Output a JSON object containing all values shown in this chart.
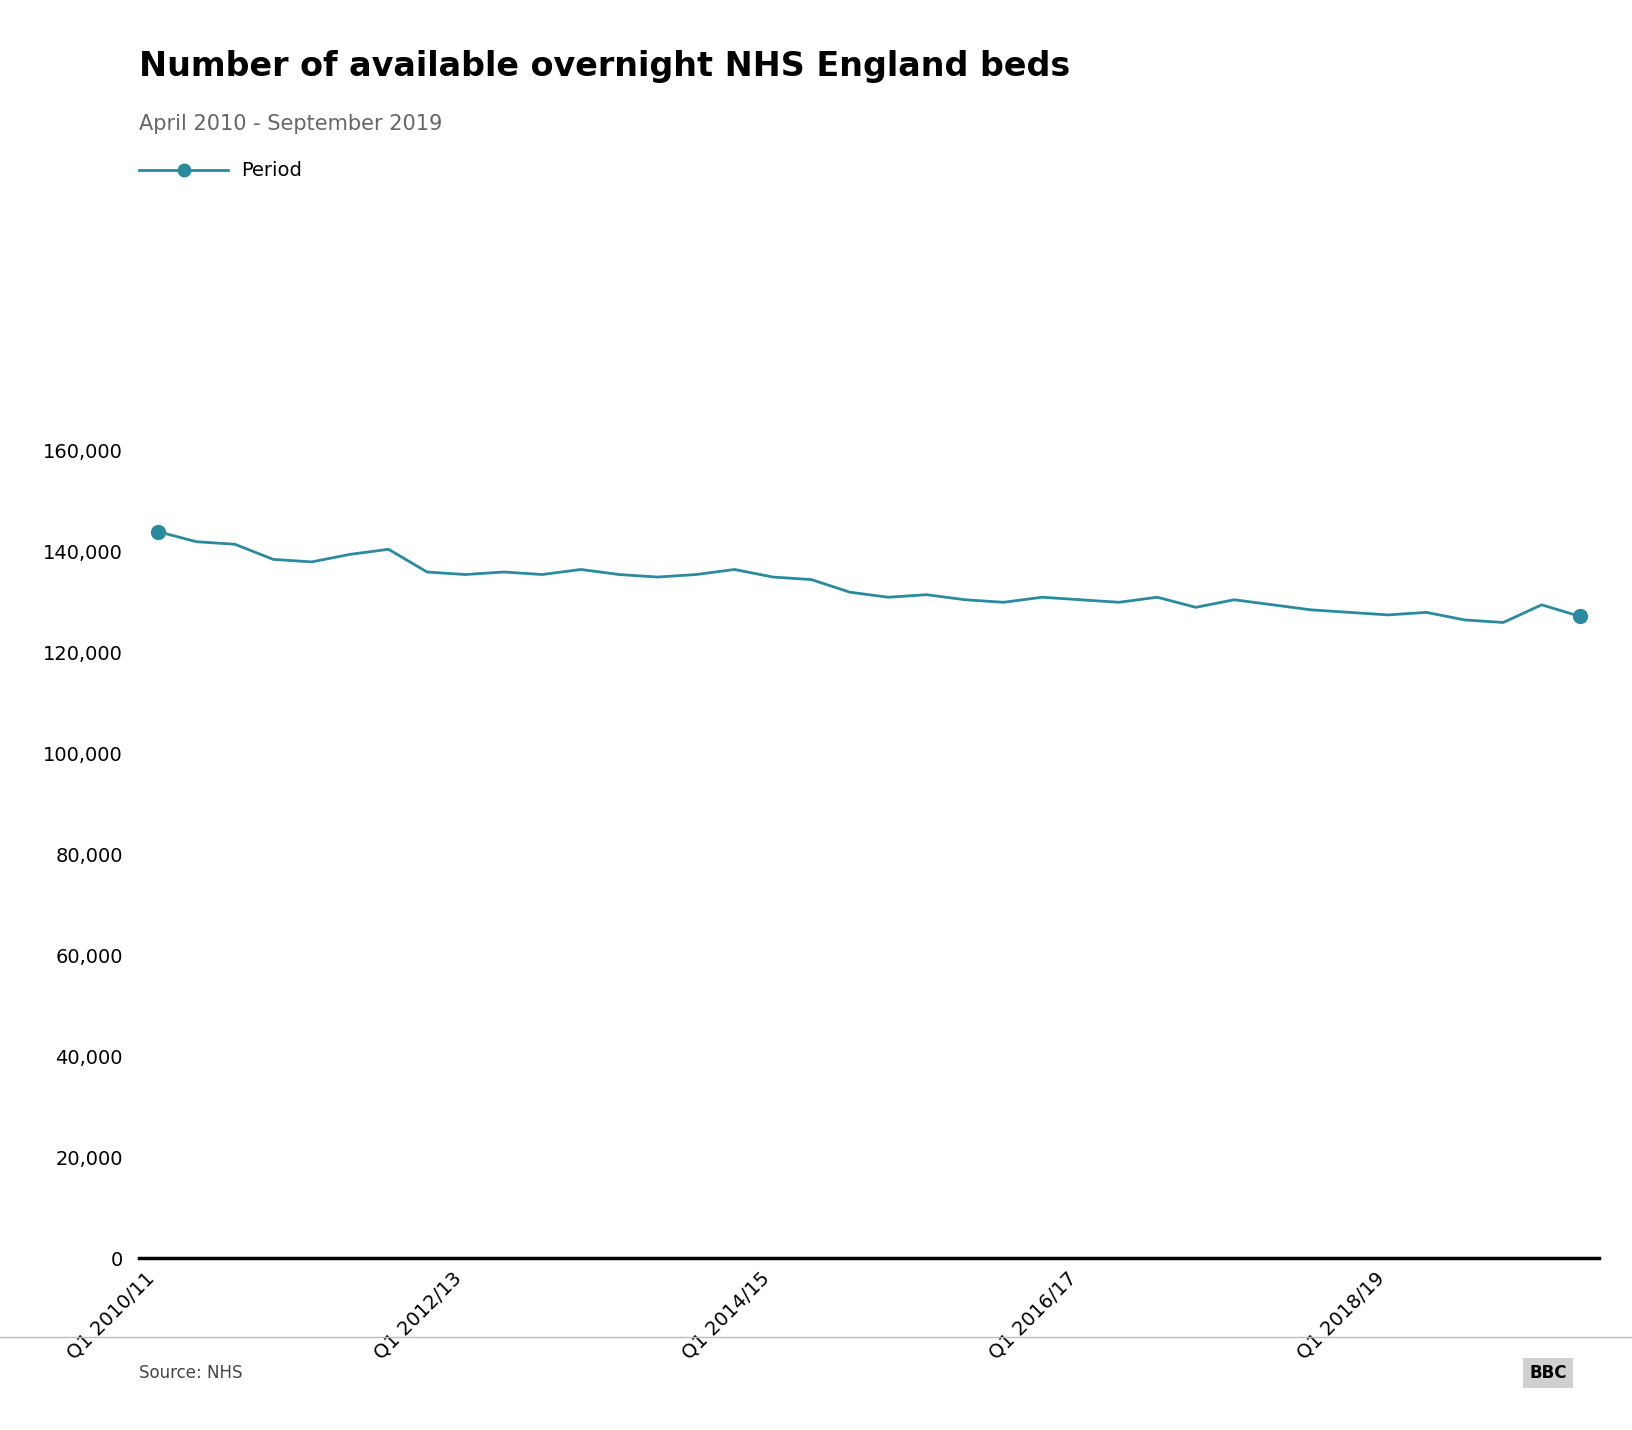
{
  "title": "Number of available overnight NHS England beds",
  "subtitle": "April 2010 - September 2019",
  "source": "Source: NHS",
  "legend_label": "Period",
  "line_color": "#2a8a9e",
  "marker_color": "#2a8a9e",
  "background_color": "#ffffff",
  "ylim": [
    0,
    170000
  ],
  "yticks": [
    0,
    20000,
    40000,
    60000,
    80000,
    100000,
    120000,
    140000,
    160000
  ],
  "xtick_labels": [
    "Q1 2010/11",
    "Q1 2012/13",
    "Q1 2014/15",
    "Q1 2016/17",
    "Q1 2018/19"
  ],
  "xtick_positions": [
    0,
    8,
    16,
    24,
    32
  ],
  "title_fontsize": 24,
  "subtitle_fontsize": 15,
  "tick_fontsize": 14,
  "values": [
    144000,
    142000,
    141500,
    138500,
    138000,
    139500,
    140500,
    136000,
    135500,
    136000,
    135500,
    136500,
    135500,
    135000,
    135500,
    136500,
    135000,
    134500,
    132000,
    131000,
    131500,
    130500,
    130000,
    131000,
    130500,
    130000,
    131000,
    129000,
    130500,
    129500,
    128500,
    128000,
    127500,
    128000,
    126500,
    126000,
    129500,
    127200
  ]
}
